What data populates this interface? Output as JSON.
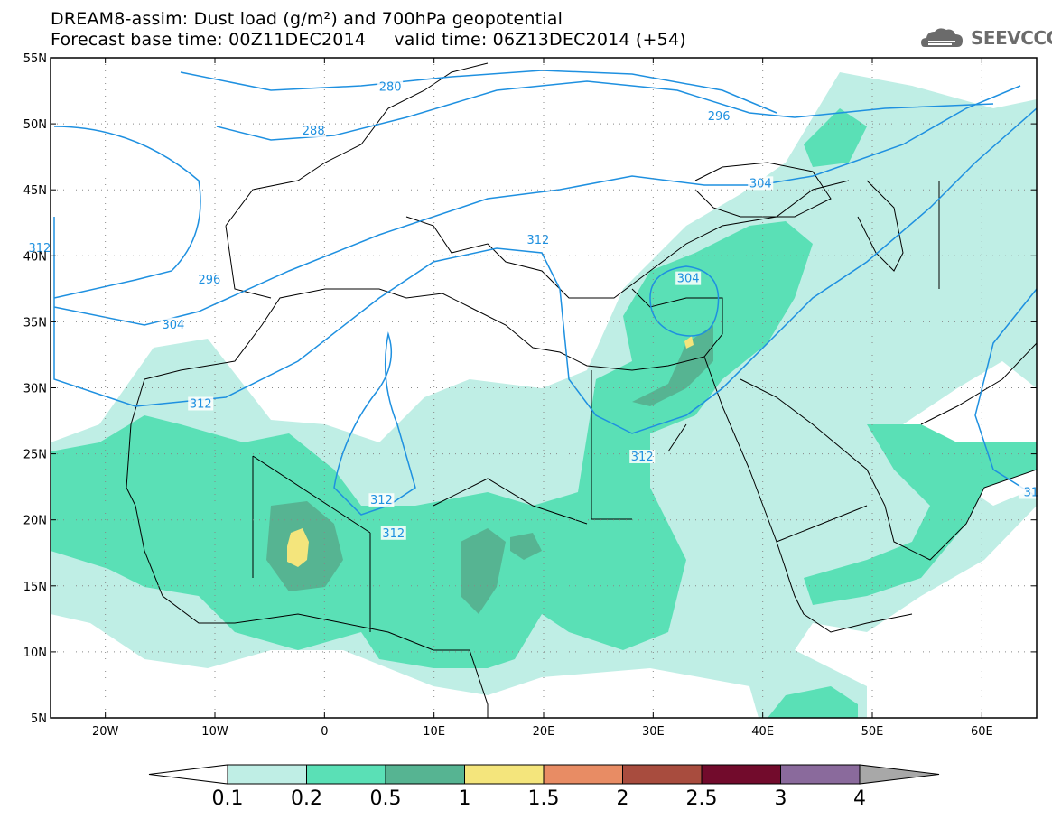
{
  "header": {
    "title_line1": "DREAM8-assim: Dust load (g/m²) and 700hPa geopotential",
    "title_line2": "Forecast base time: 00Z11DEC2014     valid time: 06Z13DEC2014 (+54)",
    "logo_text": "SEEVCCC"
  },
  "map": {
    "lon_range": [
      -25,
      65
    ],
    "lat_range": [
      5,
      55
    ],
    "lat_ticks": [
      {
        "value": 55,
        "label": "55N"
      },
      {
        "value": 50,
        "label": "50N"
      },
      {
        "value": 45,
        "label": "45N"
      },
      {
        "value": 40,
        "label": "40N"
      },
      {
        "value": 35,
        "label": "35N"
      },
      {
        "value": 30,
        "label": "30N"
      },
      {
        "value": 25,
        "label": "25N"
      },
      {
        "value": 20,
        "label": "20N"
      },
      {
        "value": 15,
        "label": "15N"
      },
      {
        "value": 10,
        "label": "10N"
      },
      {
        "value": 5,
        "label": "5N"
      }
    ],
    "lon_ticks": [
      {
        "value": -20,
        "label": "20W"
      },
      {
        "value": -10,
        "label": "10W"
      },
      {
        "value": 0,
        "label": "0"
      },
      {
        "value": 10,
        "label": "10E"
      },
      {
        "value": 20,
        "label": "20E"
      },
      {
        "value": 30,
        "label": "30E"
      },
      {
        "value": 40,
        "label": "40E"
      },
      {
        "value": 50,
        "label": "50E"
      },
      {
        "value": 60,
        "label": "60E"
      }
    ],
    "contour_labels": [
      {
        "text": "280",
        "lon": 6,
        "lat": 52.7
      },
      {
        "text": "288",
        "lon": -1,
        "lat": 49.4
      },
      {
        "text": "296",
        "lon": 36,
        "lat": 50.5
      },
      {
        "text": "296",
        "lon": -10.5,
        "lat": 38.1
      },
      {
        "text": "304",
        "lon": 39.8,
        "lat": 45.4
      },
      {
        "text": "304",
        "lon": 33.2,
        "lat": 38.2
      },
      {
        "text": "304",
        "lon": -13.8,
        "lat": 34.7
      },
      {
        "text": "312",
        "lon": 19.5,
        "lat": 41.1
      },
      {
        "text": "312",
        "lon": -11.3,
        "lat": 28.7
      },
      {
        "text": "312",
        "lon": 29,
        "lat": 24.7
      },
      {
        "text": "312",
        "lon": 5.2,
        "lat": 21.4
      },
      {
        "text": "312",
        "lon": 6.3,
        "lat": 18.9
      },
      {
        "text": "312",
        "lon": -26,
        "lat": 40.5
      },
      {
        "text": "31",
        "lon": 64.5,
        "lat": 22
      }
    ]
  },
  "colorbar": {
    "levels": [
      "0.1",
      "0.2",
      "0.5",
      "1",
      "1.5",
      "2",
      "2.5",
      "3",
      "4"
    ],
    "colors": [
      "#ffffff",
      "#bfeee5",
      "#5ae0b6",
      "#56b492",
      "#f4e57c",
      "#e88c64",
      "#a84c3e",
      "#720b2c",
      "#8a6a9c",
      "#a8a8a8"
    ]
  }
}
